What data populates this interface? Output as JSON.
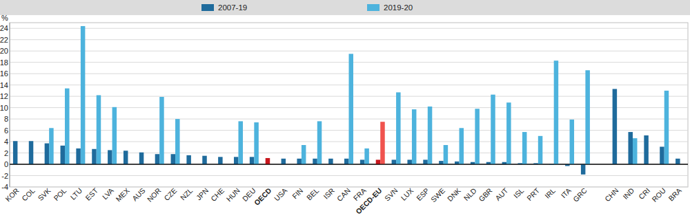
{
  "chart_data": {
    "type": "bar",
    "y_label": "%",
    "categories": [
      "KOR",
      "COL",
      "SVK",
      "POL",
      "LTU",
      "EST",
      "LVA",
      "MEX",
      "AUS",
      "NOR",
      "CZE",
      "NZL",
      "JPN",
      "CHE",
      "HUN",
      "DEU",
      "OECD",
      "USA",
      "FIN",
      "BEL",
      "ISR",
      "CAN",
      "FRA",
      "OECD-EU",
      "SVN",
      "LUX",
      "ESP",
      "SWE",
      "DNK",
      "NLD",
      "GBR",
      "AUT",
      "ISL",
      "PRT",
      "IRL",
      "ITA",
      "GRC",
      null,
      "CHN",
      "IND",
      "CRI",
      "ROU",
      "BRA"
    ],
    "series": [
      {
        "name": "2007-19",
        "color": "#1f6b9c",
        "colors": [
          "#1f6b9c",
          "#1f6b9c",
          "#1f6b9c",
          "#1f6b9c",
          "#1f6b9c",
          "#1f6b9c",
          "#1f6b9c",
          "#1f6b9c",
          "#1f6b9c",
          "#1f6b9c",
          "#1f6b9c",
          "#1f6b9c",
          "#1f6b9c",
          "#1f6b9c",
          "#1f6b9c",
          "#1f6b9c",
          "#c8161d",
          "#1f6b9c",
          "#1f6b9c",
          "#1f6b9c",
          "#1f6b9c",
          "#1f6b9c",
          "#1f6b9c",
          "#c8161d",
          "#1f6b9c",
          "#1f6b9c",
          "#1f6b9c",
          "#1f6b9c",
          "#1f6b9c",
          "#1f6b9c",
          "#1f6b9c",
          "#1f6b9c",
          "#1f6b9c",
          "#1f6b9c",
          "#1f6b9c",
          "#1f6b9c",
          "#1f6b9c",
          "#1f6b9c",
          "#1f6b9c",
          "#1f6b9c",
          "#1f6b9c",
          "#1f6b9c",
          "#1f6b9c"
        ],
        "values": [
          4.1,
          4.1,
          3.7,
          3.3,
          2.8,
          2.7,
          2.5,
          2.4,
          2.1,
          1.8,
          1.8,
          1.6,
          1.5,
          1.3,
          1.3,
          1.3,
          1.1,
          1.0,
          1.0,
          1.0,
          1.0,
          1.0,
          0.8,
          0.8,
          0.8,
          0.8,
          0.8,
          0.6,
          0.5,
          0.4,
          0.4,
          0.4,
          0.2,
          0.2,
          -0.1,
          -0.3,
          -1.8,
          null,
          13.3,
          5.7,
          5.1,
          3.1,
          1.0
        ]
      },
      {
        "name": "2019-20",
        "color": "#4db3dd",
        "colors": [
          "#4db3dd",
          "#4db3dd",
          "#4db3dd",
          "#4db3dd",
          "#4db3dd",
          "#4db3dd",
          "#4db3dd",
          "#4db3dd",
          "#4db3dd",
          "#4db3dd",
          "#4db3dd",
          "#4db3dd",
          "#4db3dd",
          "#4db3dd",
          "#4db3dd",
          "#4db3dd",
          "#4db3dd",
          "#4db3dd",
          "#4db3dd",
          "#4db3dd",
          "#4db3dd",
          "#4db3dd",
          "#4db3dd",
          "#f0534e",
          "#4db3dd",
          "#4db3dd",
          "#4db3dd",
          "#4db3dd",
          "#4db3dd",
          "#4db3dd",
          "#4db3dd",
          "#4db3dd",
          "#4db3dd",
          "#4db3dd",
          "#4db3dd",
          "#4db3dd",
          "#4db3dd",
          "#4db3dd",
          "#4db3dd",
          "#4db3dd",
          "#4db3dd",
          "#4db3dd",
          "#4db3dd"
        ],
        "values": [
          null,
          null,
          6.4,
          13.4,
          24.4,
          12.2,
          10.1,
          null,
          null,
          11.9,
          8.0,
          null,
          null,
          null,
          7.6,
          7.4,
          null,
          null,
          3.4,
          7.6,
          null,
          19.5,
          2.8,
          7.5,
          12.7,
          9.7,
          10.2,
          3.4,
          6.4,
          9.8,
          12.3,
          10.9,
          5.7,
          5.0,
          18.3,
          7.9,
          16.6,
          null,
          null,
          4.6,
          null,
          13.0,
          null
        ]
      }
    ],
    "ylim": [
      -4,
      25
    ],
    "yticks": [
      -4,
      -2,
      0,
      2,
      4,
      6,
      8,
      10,
      12,
      14,
      16,
      18,
      20,
      22,
      24
    ],
    "grid": true,
    "legend": "top"
  }
}
